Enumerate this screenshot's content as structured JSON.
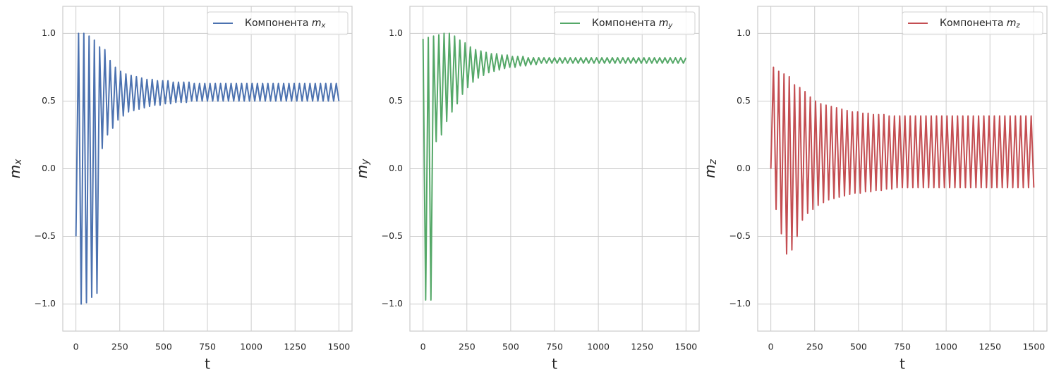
{
  "chart_data": [
    {
      "type": "line",
      "xlabel": "t",
      "ylabel": "m_x",
      "xlim": [
        -75,
        1575
      ],
      "ylim": [
        -1.2,
        1.2
      ],
      "xticks": [
        0,
        250,
        500,
        750,
        1000,
        1250,
        1500
      ],
      "yticks": [
        {
          "value": -1,
          "label": "−1.0"
        },
        {
          "value": -0.5,
          "label": "−0.5"
        },
        {
          "value": 0,
          "label": "0.0"
        },
        0.5,
        {
          "value": 1,
          "label": "1.0"
        }
      ],
      "grid": true,
      "legend": "upper right",
      "x": [
        0,
        15,
        30,
        45,
        60,
        75,
        90,
        105,
        120,
        135,
        150,
        165,
        180,
        195,
        210,
        225,
        240,
        255,
        270,
        285,
        300,
        315,
        330,
        345,
        360,
        375,
        390,
        405,
        420,
        435,
        450,
        465,
        480,
        495,
        510,
        525,
        540,
        555,
        570,
        585,
        600,
        615,
        630,
        645,
        660,
        675,
        690,
        705,
        720,
        735,
        750,
        765,
        780,
        795,
        810,
        825,
        840,
        855,
        870,
        885,
        900,
        915,
        930,
        945,
        960,
        975,
        990,
        1005,
        1020,
        1035,
        1050,
        1065,
        1080,
        1095,
        1110,
        1125,
        1140,
        1155,
        1170,
        1185,
        1200,
        1215,
        1230,
        1245,
        1260,
        1275,
        1290,
        1305,
        1320,
        1335,
        1350,
        1365,
        1380,
        1395,
        1410,
        1425,
        1440,
        1455,
        1470,
        1485,
        1500
      ],
      "series": [
        {
          "name": "Компонента m_x",
          "color": "#4c72b0",
          "values": [
            -0.5,
            1,
            -1,
            1,
            -0.99,
            0.98,
            -0.95,
            0.95,
            -0.92,
            0.9,
            0.15,
            0.88,
            0.25,
            0.8,
            0.3,
            0.75,
            0.36,
            0.72,
            0.39,
            0.7,
            0.42,
            0.69,
            0.43,
            0.68,
            0.44,
            0.67,
            0.45,
            0.66,
            0.46,
            0.66,
            0.47,
            0.65,
            0.47,
            0.65,
            0.48,
            0.65,
            0.48,
            0.64,
            0.49,
            0.64,
            0.49,
            0.64,
            0.49,
            0.64,
            0.5,
            0.63,
            0.5,
            0.63,
            0.5,
            0.63,
            0.5,
            0.63,
            0.5,
            0.63,
            0.5,
            0.63,
            0.5,
            0.63,
            0.5,
            0.63,
            0.5,
            0.63,
            0.5,
            0.63,
            0.5,
            0.63,
            0.5,
            0.63,
            0.5,
            0.63,
            0.5,
            0.63,
            0.5,
            0.63,
            0.5,
            0.63,
            0.5,
            0.63,
            0.5,
            0.63,
            0.5,
            0.63,
            0.5,
            0.63,
            0.5,
            0.63,
            0.5,
            0.63,
            0.5,
            0.63,
            0.5,
            0.63,
            0.5,
            0.63,
            0.5,
            0.63,
            0.5,
            0.63,
            0.5,
            0.63,
            0.5
          ]
        }
      ]
    },
    {
      "type": "line",
      "xlabel": "t",
      "ylabel": "m_y",
      "xlim": [
        -75,
        1575
      ],
      "ylim": [
        -1.2,
        1.2
      ],
      "xticks": [
        0,
        250,
        500,
        750,
        1000,
        1250,
        1500
      ],
      "yticks": [
        {
          "value": -1,
          "label": "−1.0"
        },
        {
          "value": -0.5,
          "label": "−0.5"
        },
        {
          "value": 0,
          "label": "0.0"
        },
        0.5,
        {
          "value": 1,
          "label": "1.0"
        }
      ],
      "grid": true,
      "legend": "upper right",
      "x": [
        0,
        15,
        30,
        45,
        60,
        75,
        90,
        105,
        120,
        135,
        150,
        165,
        180,
        195,
        210,
        225,
        240,
        255,
        270,
        285,
        300,
        315,
        330,
        345,
        360,
        375,
        390,
        405,
        420,
        435,
        450,
        465,
        480,
        495,
        510,
        525,
        540,
        555,
        570,
        585,
        600,
        615,
        630,
        645,
        660,
        675,
        690,
        705,
        720,
        735,
        750,
        765,
        780,
        795,
        810,
        825,
        840,
        855,
        870,
        885,
        900,
        915,
        930,
        945,
        960,
        975,
        990,
        1005,
        1020,
        1035,
        1050,
        1065,
        1080,
        1095,
        1110,
        1125,
        1140,
        1155,
        1170,
        1185,
        1200,
        1215,
        1230,
        1245,
        1260,
        1275,
        1290,
        1305,
        1320,
        1335,
        1350,
        1365,
        1380,
        1395,
        1410,
        1425,
        1440,
        1455,
        1470,
        1485,
        1500
      ],
      "series": [
        {
          "name": "Компонента m_y",
          "color": "#55a868",
          "values": [
            0.96,
            -0.97,
            0.97,
            -0.97,
            0.98,
            0.2,
            0.99,
            0.25,
            1,
            0.35,
            1,
            0.42,
            0.98,
            0.48,
            0.95,
            0.55,
            0.93,
            0.6,
            0.9,
            0.64,
            0.88,
            0.67,
            0.87,
            0.69,
            0.86,
            0.71,
            0.85,
            0.72,
            0.85,
            0.73,
            0.84,
            0.74,
            0.84,
            0.75,
            0.83,
            0.75,
            0.83,
            0.76,
            0.83,
            0.76,
            0.82,
            0.77,
            0.82,
            0.77,
            0.82,
            0.78,
            0.82,
            0.78,
            0.82,
            0.78,
            0.82,
            0.78,
            0.82,
            0.78,
            0.82,
            0.78,
            0.82,
            0.78,
            0.82,
            0.78,
            0.82,
            0.78,
            0.82,
            0.78,
            0.82,
            0.78,
            0.82,
            0.78,
            0.82,
            0.78,
            0.82,
            0.78,
            0.82,
            0.78,
            0.82,
            0.78,
            0.82,
            0.78,
            0.82,
            0.78,
            0.82,
            0.78,
            0.82,
            0.78,
            0.82,
            0.78,
            0.82,
            0.78,
            0.82,
            0.78,
            0.82,
            0.78,
            0.82,
            0.78,
            0.82,
            0.78,
            0.82,
            0.78,
            0.82,
            0.78,
            0.82
          ]
        }
      ]
    },
    {
      "type": "line",
      "xlabel": "t",
      "ylabel": "m_z",
      "xlim": [
        -75,
        1575
      ],
      "ylim": [
        -1.2,
        1.2
      ],
      "xticks": [
        0,
        250,
        500,
        750,
        1000,
        1250,
        1500
      ],
      "yticks": [
        {
          "value": -1,
          "label": "−1.0"
        },
        {
          "value": -0.5,
          "label": "−0.5"
        },
        {
          "value": 0,
          "label": "0.0"
        },
        0.5,
        {
          "value": 1,
          "label": "1.0"
        }
      ],
      "grid": true,
      "legend": "upper right",
      "x": [
        0,
        15,
        30,
        45,
        60,
        75,
        90,
        105,
        120,
        135,
        150,
        165,
        180,
        195,
        210,
        225,
        240,
        255,
        270,
        285,
        300,
        315,
        330,
        345,
        360,
        375,
        390,
        405,
        420,
        435,
        450,
        465,
        480,
        495,
        510,
        525,
        540,
        555,
        570,
        585,
        600,
        615,
        630,
        645,
        660,
        675,
        690,
        705,
        720,
        735,
        750,
        765,
        780,
        795,
        810,
        825,
        840,
        855,
        870,
        885,
        900,
        915,
        930,
        945,
        960,
        975,
        990,
        1005,
        1020,
        1035,
        1050,
        1065,
        1080,
        1095,
        1110,
        1125,
        1140,
        1155,
        1170,
        1185,
        1200,
        1215,
        1230,
        1245,
        1260,
        1275,
        1290,
        1305,
        1320,
        1335,
        1350,
        1365,
        1380,
        1395,
        1410,
        1425,
        1440,
        1455,
        1470,
        1485,
        1500
      ],
      "series": [
        {
          "name": "Компонента m_z",
          "color": "#c44e52",
          "values": [
            0,
            0.75,
            -0.3,
            0.72,
            -0.48,
            0.7,
            -0.63,
            0.68,
            -0.6,
            0.62,
            -0.5,
            0.6,
            -0.38,
            0.57,
            -0.33,
            0.53,
            -0.3,
            0.5,
            -0.27,
            0.48,
            -0.25,
            0.47,
            -0.23,
            0.46,
            -0.22,
            0.45,
            -0.21,
            0.44,
            -0.2,
            0.43,
            -0.19,
            0.42,
            -0.18,
            0.42,
            -0.18,
            0.41,
            -0.17,
            0.41,
            -0.17,
            0.4,
            -0.16,
            0.4,
            -0.16,
            0.4,
            -0.15,
            0.39,
            -0.15,
            0.39,
            -0.14,
            0.39,
            -0.14,
            0.39,
            -0.14,
            0.39,
            -0.14,
            0.39,
            -0.14,
            0.39,
            -0.14,
            0.39,
            -0.14,
            0.39,
            -0.14,
            0.39,
            -0.14,
            0.39,
            -0.14,
            0.39,
            -0.14,
            0.39,
            -0.14,
            0.39,
            -0.14,
            0.39,
            -0.14,
            0.39,
            -0.14,
            0.39,
            -0.14,
            0.39,
            -0.14,
            0.39,
            -0.14,
            0.39,
            -0.14,
            0.39,
            -0.14,
            0.39,
            -0.14,
            0.39,
            -0.14,
            0.39,
            -0.14,
            0.39,
            -0.14,
            0.39,
            -0.14,
            0.39,
            -0.14,
            0.39,
            -0.14
          ]
        }
      ]
    }
  ]
}
